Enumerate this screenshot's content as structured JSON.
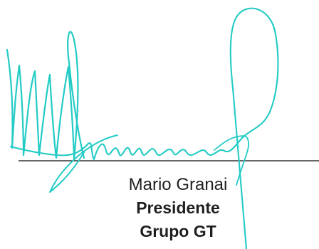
{
  "signature_block": {
    "name": "Mario Granai",
    "title": "Presidente",
    "organization": "Grupo GT"
  },
  "colors": {
    "signature_ink": "#23cbc5",
    "signature_line": "#333333",
    "text": "#1f1f1f"
  }
}
